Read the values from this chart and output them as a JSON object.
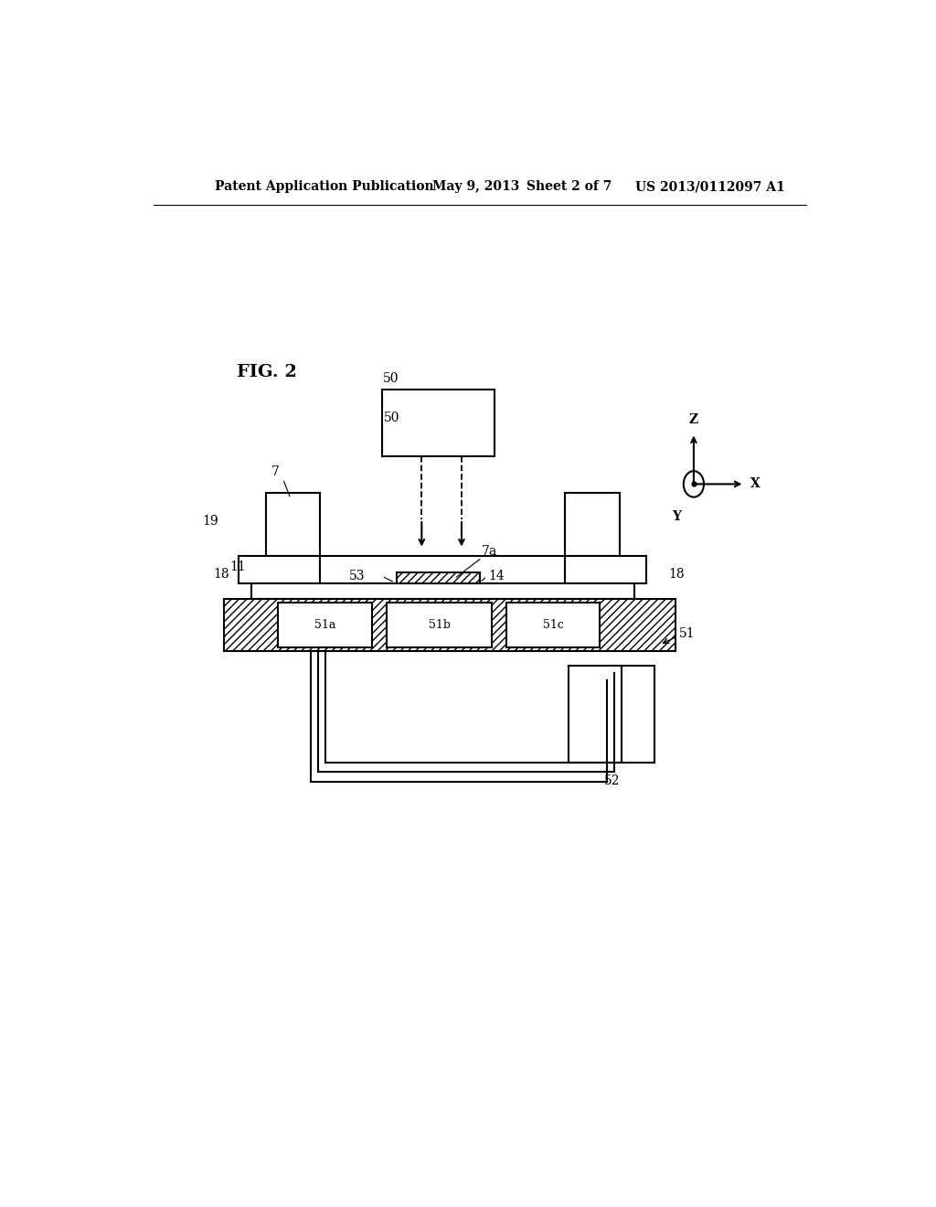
{
  "bg_color": "#ffffff",
  "line_color": "#000000",
  "header_text": "Patent Application Publication",
  "header_date": "May 9, 2013",
  "header_sheet": "Sheet 2 of 7",
  "header_patent": "US 2013/0112097 A1",
  "fig_label": "FIG. 2"
}
